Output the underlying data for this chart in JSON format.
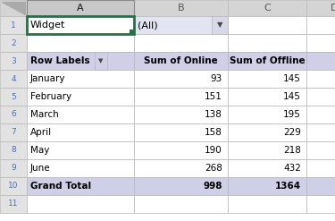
{
  "col_headers": [
    "A",
    "B",
    "C",
    "D"
  ],
  "filter_label": "Widget",
  "filter_value": "(All)",
  "table_headers": [
    "Row Labels",
    "Sum of Online",
    "Sum of Offline"
  ],
  "months": [
    "January",
    "February",
    "March",
    "April",
    "May",
    "June"
  ],
  "online": [
    93,
    151,
    138,
    158,
    190,
    268
  ],
  "offline": [
    145,
    145,
    195,
    229,
    218,
    432
  ],
  "total_online": 998,
  "total_offline": 1364,
  "header_bg": "#cfd0e8",
  "filter_cell_bg": "#e3e4f2",
  "col_header_bg": "#d4d4d4",
  "row_header_bg": "#e2e2e2",
  "grand_total_bg": "#cfd0e8",
  "grid_color": "#b8b8b8",
  "selected_border": "#217346",
  "bg_white": "#ffffff",
  "row_num_color": "#4472c4",
  "data_row_alt": "#f2f2f2"
}
